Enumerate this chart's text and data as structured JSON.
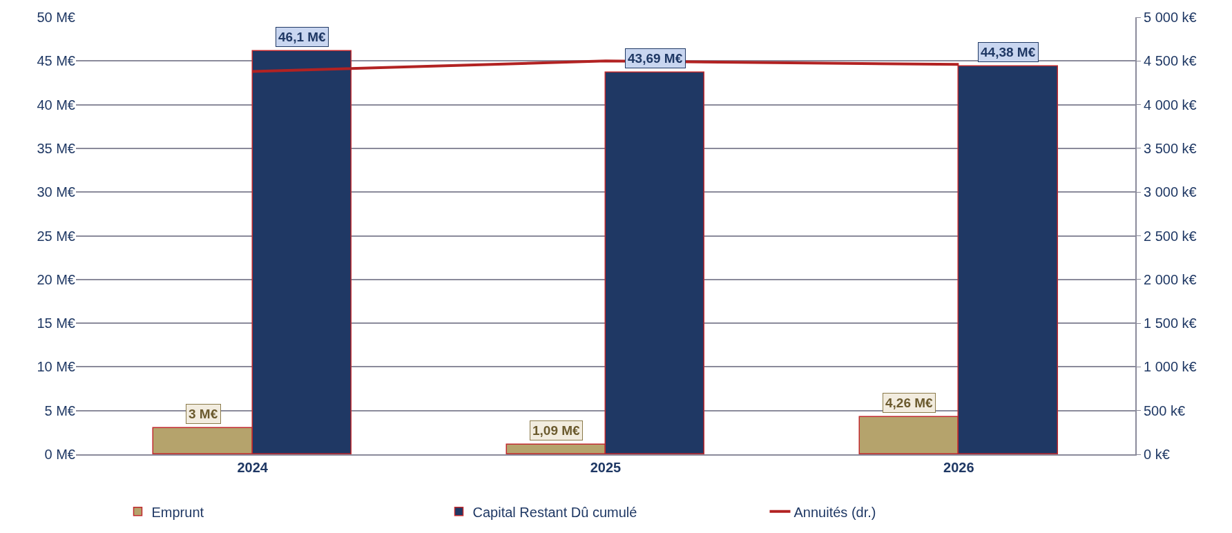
{
  "chart_data": {
    "type": "bar",
    "categories": [
      "2024",
      "2025",
      "2026"
    ],
    "series": [
      {
        "name": "Emprunt",
        "color": "#b5a36c",
        "values": [
          3,
          1.09,
          4.26
        ],
        "value_labels": [
          "3 M€",
          "1,09 M€",
          "4,26 M€"
        ]
      },
      {
        "name": "Capital Restant Dû cumulé",
        "color": "#1f3864",
        "values": [
          46.1,
          43.69,
          44.38
        ],
        "value_labels": [
          "46,1 M€",
          "43,69 M€",
          "44,38 M€"
        ]
      },
      {
        "name": "Annuités (dr.)",
        "type": "line",
        "axis": "y2",
        "color": "#b22222",
        "values": [
          4380,
          4500,
          4460
        ],
        "marker": "none"
      }
    ],
    "ylim": [
      0,
      50
    ],
    "yticks": [
      {
        "value": 0,
        "label": "0 M€"
      },
      {
        "value": 5,
        "label": "5 M€"
      },
      {
        "value": 10,
        "label": "10 M€"
      },
      {
        "value": 15,
        "label": "15 M€"
      },
      {
        "value": 20,
        "label": "20 M€"
      },
      {
        "value": 25,
        "label": "25 M€"
      },
      {
        "value": 30,
        "label": "30 M€"
      },
      {
        "value": 35,
        "label": "35 M€"
      },
      {
        "value": 40,
        "label": "40 M€"
      },
      {
        "value": 45,
        "label": "45 M€"
      },
      {
        "value": 50,
        "label": "50 M€"
      }
    ],
    "y2lim": [
      0,
      5000
    ],
    "y2ticks": [
      {
        "value": 0,
        "label": "0 k€"
      },
      {
        "value": 500,
        "label": "500 k€"
      },
      {
        "value": 1000,
        "label": "1 000 k€"
      },
      {
        "value": 1500,
        "label": "1 500 k€"
      },
      {
        "value": 2000,
        "label": "2 000 k€"
      },
      {
        "value": 2500,
        "label": "2 500 k€"
      },
      {
        "value": 3000,
        "label": "3 000 k€"
      },
      {
        "value": 3500,
        "label": "3 500 k€"
      },
      {
        "value": 4000,
        "label": "4 000 k€"
      },
      {
        "value": 4500,
        "label": "4 500 k€"
      },
      {
        "value": 5000,
        "label": "5 000 k€"
      }
    ],
    "grid": "y",
    "legend": "bottom"
  }
}
